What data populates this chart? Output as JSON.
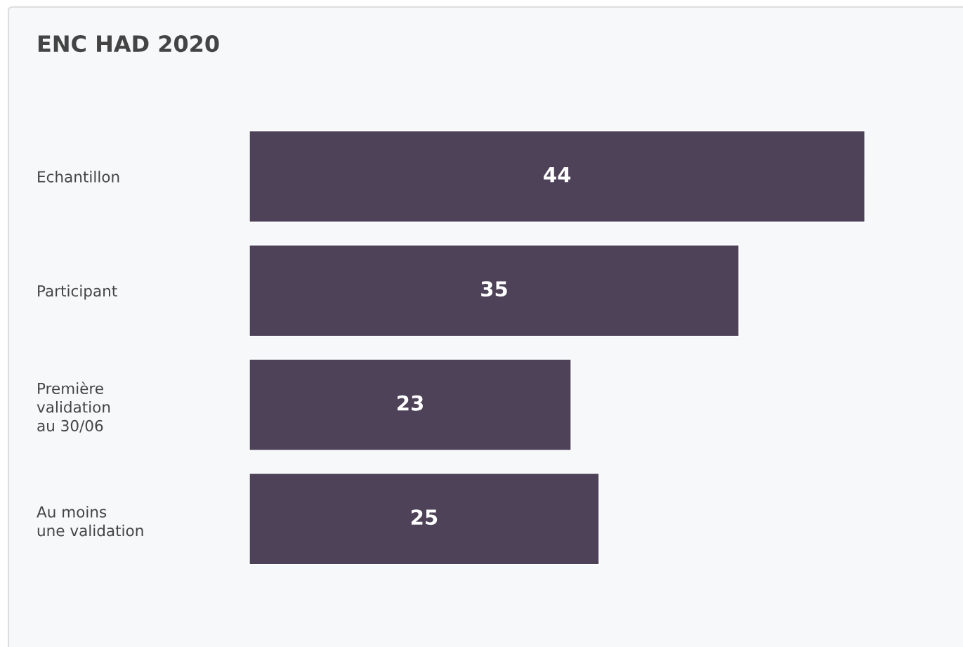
{
  "chart_data": {
    "type": "bar",
    "orientation": "horizontal",
    "title": "ENC HAD 2020",
    "categories": [
      "Echantillon",
      "Participant",
      "Première\nvalidation\nau 30/06",
      "Au moins\nune validation"
    ],
    "values": [
      44,
      35,
      23,
      25
    ],
    "color": "#4e4259",
    "data_labels": true,
    "grid": false,
    "legend": false
  }
}
